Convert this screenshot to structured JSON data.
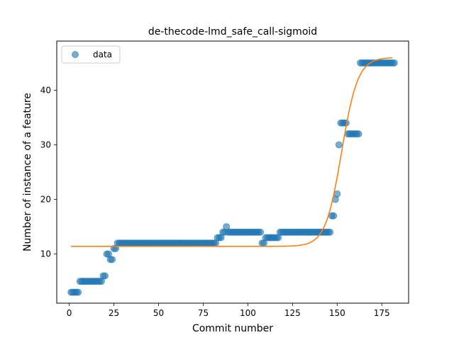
{
  "chart_data": {
    "type": "scatter",
    "title": "de-thecode-lmd_safe_call-sigmoid",
    "xlabel": "Commit number",
    "ylabel": "Number of instance of a feature",
    "xlim": [
      -7,
      190
    ],
    "ylim": [
      1,
      49
    ],
    "xticks": [
      0,
      25,
      50,
      75,
      100,
      125,
      150,
      175
    ],
    "yticks": [
      10,
      20,
      30,
      40
    ],
    "legend": {
      "position": "upper-left",
      "entries": [
        "data"
      ]
    },
    "colors": {
      "data": "#1f77b4",
      "fit": "#ff7f0e"
    },
    "series": [
      {
        "name": "data",
        "style": "markers",
        "points": [
          [
            1,
            3
          ],
          [
            2,
            3
          ],
          [
            3,
            3
          ],
          [
            4,
            3
          ],
          [
            5,
            3
          ],
          [
            6,
            5
          ],
          [
            7,
            5
          ],
          [
            8,
            5
          ],
          [
            9,
            5
          ],
          [
            10,
            5
          ],
          [
            11,
            5
          ],
          [
            12,
            5
          ],
          [
            13,
            5
          ],
          [
            14,
            5
          ],
          [
            15,
            5
          ],
          [
            16,
            5
          ],
          [
            17,
            5
          ],
          [
            18,
            5
          ],
          [
            19,
            6
          ],
          [
            20,
            6
          ],
          [
            21,
            10
          ],
          [
            22,
            10
          ],
          [
            23,
            9
          ],
          [
            24,
            9
          ],
          [
            25,
            11
          ],
          [
            26,
            11
          ],
          [
            27,
            12
          ],
          [
            28,
            12
          ],
          [
            29,
            12
          ],
          [
            30,
            12
          ],
          [
            31,
            12
          ],
          [
            32,
            12
          ],
          [
            33,
            12
          ],
          [
            34,
            12
          ],
          [
            35,
            12
          ],
          [
            36,
            12
          ],
          [
            37,
            12
          ],
          [
            38,
            12
          ],
          [
            39,
            12
          ],
          [
            40,
            12
          ],
          [
            41,
            12
          ],
          [
            42,
            12
          ],
          [
            43,
            12
          ],
          [
            44,
            12
          ],
          [
            45,
            12
          ],
          [
            46,
            12
          ],
          [
            47,
            12
          ],
          [
            48,
            12
          ],
          [
            49,
            12
          ],
          [
            50,
            12
          ],
          [
            51,
            12
          ],
          [
            52,
            12
          ],
          [
            53,
            12
          ],
          [
            54,
            12
          ],
          [
            55,
            12
          ],
          [
            56,
            12
          ],
          [
            57,
            12
          ],
          [
            58,
            12
          ],
          [
            59,
            12
          ],
          [
            60,
            12
          ],
          [
            61,
            12
          ],
          [
            62,
            12
          ],
          [
            63,
            12
          ],
          [
            64,
            12
          ],
          [
            65,
            12
          ],
          [
            66,
            12
          ],
          [
            67,
            12
          ],
          [
            68,
            12
          ],
          [
            69,
            12
          ],
          [
            70,
            12
          ],
          [
            71,
            12
          ],
          [
            72,
            12
          ],
          [
            73,
            12
          ],
          [
            74,
            12
          ],
          [
            75,
            12
          ],
          [
            76,
            12
          ],
          [
            77,
            12
          ],
          [
            78,
            12
          ],
          [
            79,
            12
          ],
          [
            80,
            12
          ],
          [
            81,
            12
          ],
          [
            82,
            12
          ],
          [
            83,
            13
          ],
          [
            84,
            13
          ],
          [
            85,
            13
          ],
          [
            86,
            14
          ],
          [
            87,
            14
          ],
          [
            88,
            15
          ],
          [
            89,
            14
          ],
          [
            90,
            14
          ],
          [
            91,
            14
          ],
          [
            92,
            14
          ],
          [
            93,
            14
          ],
          [
            94,
            14
          ],
          [
            95,
            14
          ],
          [
            96,
            14
          ],
          [
            97,
            14
          ],
          [
            98,
            14
          ],
          [
            99,
            14
          ],
          [
            100,
            14
          ],
          [
            101,
            14
          ],
          [
            102,
            14
          ],
          [
            103,
            14
          ],
          [
            104,
            14
          ],
          [
            105,
            14
          ],
          [
            106,
            14
          ],
          [
            107,
            14
          ],
          [
            108,
            12
          ],
          [
            109,
            12
          ],
          [
            110,
            13
          ],
          [
            111,
            13
          ],
          [
            112,
            13
          ],
          [
            113,
            13
          ],
          [
            114,
            13
          ],
          [
            115,
            13
          ],
          [
            116,
            13
          ],
          [
            117,
            13
          ],
          [
            118,
            14
          ],
          [
            119,
            14
          ],
          [
            120,
            14
          ],
          [
            121,
            14
          ],
          [
            122,
            14
          ],
          [
            123,
            14
          ],
          [
            124,
            14
          ],
          [
            125,
            14
          ],
          [
            126,
            14
          ],
          [
            127,
            14
          ],
          [
            128,
            14
          ],
          [
            129,
            14
          ],
          [
            130,
            14
          ],
          [
            131,
            14
          ],
          [
            132,
            14
          ],
          [
            133,
            14
          ],
          [
            134,
            14
          ],
          [
            135,
            14
          ],
          [
            136,
            14
          ],
          [
            137,
            14
          ],
          [
            138,
            14
          ],
          [
            139,
            14
          ],
          [
            140,
            14
          ],
          [
            141,
            14
          ],
          [
            142,
            14
          ],
          [
            143,
            14
          ],
          [
            144,
            14
          ],
          [
            145,
            14
          ],
          [
            146,
            14
          ],
          [
            147,
            17
          ],
          [
            148,
            17
          ],
          [
            149,
            20
          ],
          [
            150,
            21
          ],
          [
            151,
            30
          ],
          [
            152,
            34
          ],
          [
            153,
            34
          ],
          [
            154,
            34
          ],
          [
            155,
            34
          ],
          [
            156,
            32
          ],
          [
            157,
            32
          ],
          [
            158,
            32
          ],
          [
            159,
            32
          ],
          [
            160,
            32
          ],
          [
            161,
            32
          ],
          [
            162,
            32
          ],
          [
            163,
            45
          ],
          [
            164,
            45
          ],
          [
            165,
            45
          ],
          [
            166,
            45
          ],
          [
            167,
            45
          ],
          [
            168,
            45
          ],
          [
            169,
            45
          ],
          [
            170,
            45
          ],
          [
            171,
            45
          ],
          [
            172,
            45
          ],
          [
            173,
            45
          ],
          [
            174,
            45
          ],
          [
            175,
            45
          ],
          [
            176,
            45
          ],
          [
            177,
            45
          ],
          [
            178,
            45
          ],
          [
            179,
            45
          ],
          [
            180,
            45
          ],
          [
            181,
            45
          ],
          [
            182,
            45
          ]
        ]
      },
      {
        "name": "",
        "style": "line",
        "model": "sigmoid",
        "params": {
          "base": 11.4,
          "amplitude": 34.6,
          "midpoint": 152.5,
          "steepness": 0.22
        },
        "x_range": [
          1,
          181
        ]
      }
    ]
  }
}
